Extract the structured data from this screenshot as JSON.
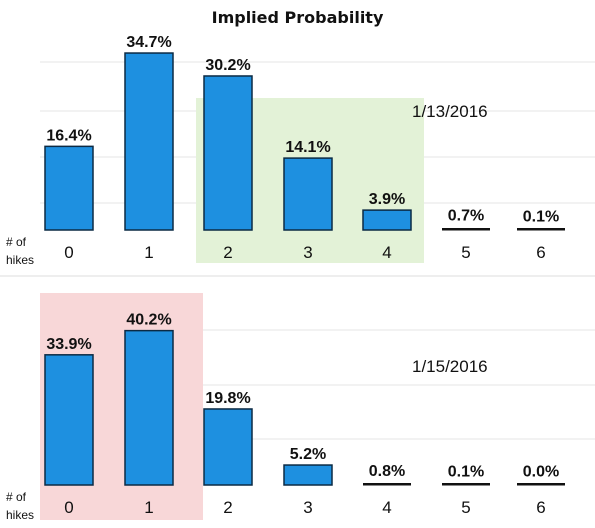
{
  "title": "Implied Probability",
  "colors": {
    "bar": "#1e90e0",
    "bar_stroke": "#0b2a44",
    "highlight_green": "#e3f2d7",
    "highlight_red": "#f8d7d8",
    "grid": "#e4e4e4"
  },
  "chart_data": [
    {
      "type": "bar",
      "title": "",
      "date_label": "1/13/2016",
      "xlabel": "# of hikes",
      "categories": [
        "0",
        "1",
        "2",
        "3",
        "4",
        "5",
        "6"
      ],
      "values": [
        16.4,
        34.7,
        30.2,
        14.1,
        3.9,
        0.7,
        0.1
      ],
      "value_labels": [
        "16.4%",
        "34.7%",
        "30.2%",
        "14.1%",
        "3.9%",
        "0.7%",
        "0.1%"
      ],
      "highlighted_categories": [
        "2",
        "3",
        "4"
      ],
      "highlight_color": "green",
      "ylim": [
        0,
        40
      ],
      "grid": true
    },
    {
      "type": "bar",
      "title": "",
      "date_label": "1/15/2016",
      "xlabel": "# of hikes",
      "categories": [
        "0",
        "1",
        "2",
        "3",
        "4",
        "5",
        "6"
      ],
      "values": [
        33.9,
        40.2,
        19.8,
        5.2,
        0.8,
        0.1,
        0.0
      ],
      "value_labels": [
        "33.9%",
        "40.2%",
        "19.8%",
        "5.2%",
        "0.8%",
        "0.1%",
        "0.0%"
      ],
      "highlighted_categories": [
        "0",
        "1"
      ],
      "highlight_color": "red",
      "ylim": [
        0,
        45
      ],
      "grid": true
    }
  ]
}
